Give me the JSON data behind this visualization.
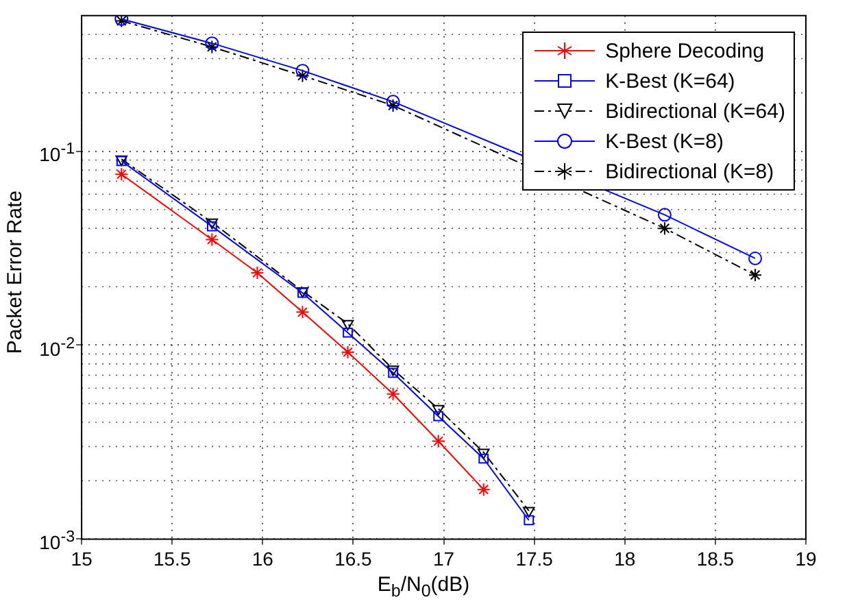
{
  "chart_data": {
    "type": "line",
    "xlabel": "E$_{b}$/N$_{0}$(dB)",
    "ylabel": "Packet Error Rate",
    "log": "y",
    "grid": true,
    "legend": "top right",
    "xlim": [
      15,
      19
    ],
    "xticks": [
      15,
      15.5,
      16,
      16.5,
      17,
      17.5,
      18,
      18.5,
      19
    ],
    "ylim": [
      0.001,
      0.5
    ],
    "yticks": [
      {
        "value": 0.001,
        "label": "10$^{-3}$"
      },
      {
        "value": 0.01,
        "label": "10$^{-2}$"
      },
      {
        "value": 0.1,
        "label": "10$^{-1}$"
      }
    ],
    "series": [
      {
        "name": "Sphere Decoding",
        "color": "#ff0000",
        "marker": "cross",
        "line_style": "solid",
        "x": [
          15.22,
          15.72,
          15.97,
          16.22,
          16.47,
          16.72,
          16.97,
          17.22
        ],
        "values": [
          0.076,
          0.035,
          0.0236,
          0.0148,
          0.0092,
          0.0056,
          0.0032,
          0.0018
        ]
      },
      {
        "name": "K-Best (K=64)",
        "color": "#0000ff",
        "marker": "square",
        "line_style": "solid",
        "x": [
          15.22,
          15.72,
          16.22,
          16.47,
          16.72,
          16.97,
          17.22,
          17.47
        ],
        "values": [
          0.089,
          0.041,
          0.0186,
          0.0116,
          0.0072,
          0.0043,
          0.0026,
          0.00125
        ]
      },
      {
        "name": "Bidirectional (K=64)",
        "color": "#000000",
        "marker": "triangle",
        "line_style": "dashed",
        "x": [
          15.22,
          15.72,
          16.22,
          16.47,
          16.72,
          16.97,
          17.22,
          17.47
        ],
        "values": [
          0.091,
          0.043,
          0.019,
          0.0129,
          0.0075,
          0.0047,
          0.0028,
          0.0014
        ]
      },
      {
        "name": "K-Best (K=8)",
        "color": "#0000ff",
        "marker": "circle",
        "line_style": "solid",
        "x": [
          15.22,
          15.72,
          16.22,
          16.72,
          17.22,
          17.72,
          18.22,
          18.72
        ],
        "values": [
          0.48,
          0.36,
          0.26,
          0.18,
          null,
          null,
          0.047,
          0.028
        ]
      },
      {
        "name": "Bidirectional (K=8)",
        "color": "#000000",
        "marker": "cross",
        "line_style": "dashed",
        "x": [
          15.22,
          15.72,
          16.22,
          16.72,
          17.22,
          17.72,
          18.22,
          18.72
        ],
        "values": [
          0.47,
          0.345,
          0.245,
          0.172,
          null,
          null,
          0.04,
          0.023
        ]
      }
    ]
  }
}
